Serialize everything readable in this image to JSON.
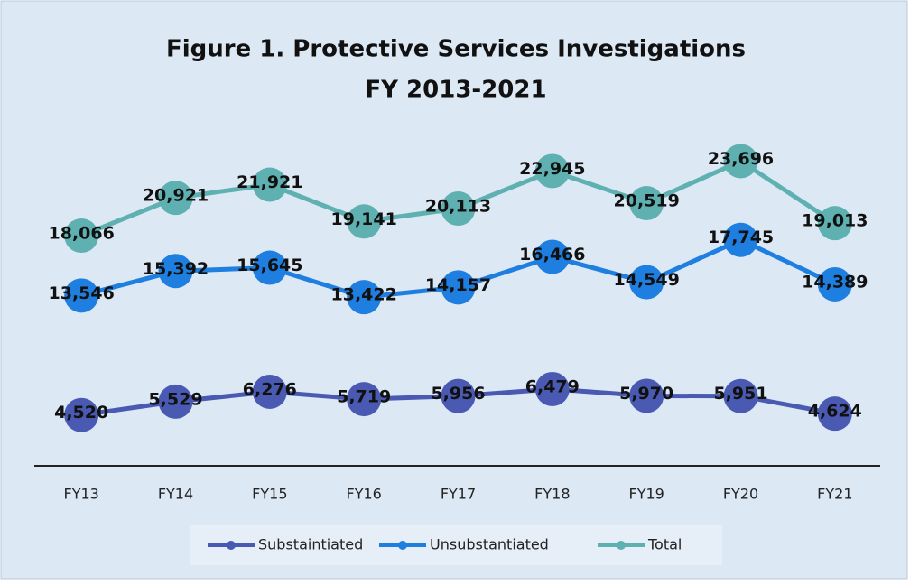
{
  "chart_data": {
    "type": "line",
    "title": "Figure 1. Protective Services Investigations",
    "subtitle": "FY 2013-2021",
    "categories": [
      "FY13",
      "FY14",
      "FY15",
      "FY16",
      "FY17",
      "FY18",
      "FY19",
      "FY20",
      "FY21"
    ],
    "ylim": [
      0,
      27000
    ],
    "legend": "bottom",
    "series": [
      {
        "name": "Substaintiated",
        "color": "#4a5ab3",
        "values": [
          4520,
          5529,
          6276,
          5719,
          5956,
          6479,
          5970,
          5951,
          4624
        ],
        "value_labels": [
          "4,520",
          "5,529",
          "6,276",
          "5,719",
          "5,956",
          "6,479",
          "5,970",
          "5,951",
          "4,624"
        ]
      },
      {
        "name": "Unsubstantiated",
        "color": "#1e7fe0",
        "values": [
          13546,
          15392,
          15645,
          13422,
          14157,
          16466,
          14549,
          17745,
          14389
        ],
        "value_labels": [
          "13,546",
          "15,392",
          "15,645",
          "13,422",
          "14,157",
          "16,466",
          "14,549",
          "17,745",
          "14,389"
        ]
      },
      {
        "name": "Total",
        "color": "#5fb1b1",
        "values": [
          18066,
          20921,
          21921,
          19141,
          20113,
          22945,
          20519,
          23696,
          19013
        ],
        "value_labels": [
          "18,066",
          "20,921",
          "21,921",
          "19,141",
          "20,113",
          "22,945",
          "20,519",
          "23,696",
          "19,013"
        ]
      }
    ]
  }
}
